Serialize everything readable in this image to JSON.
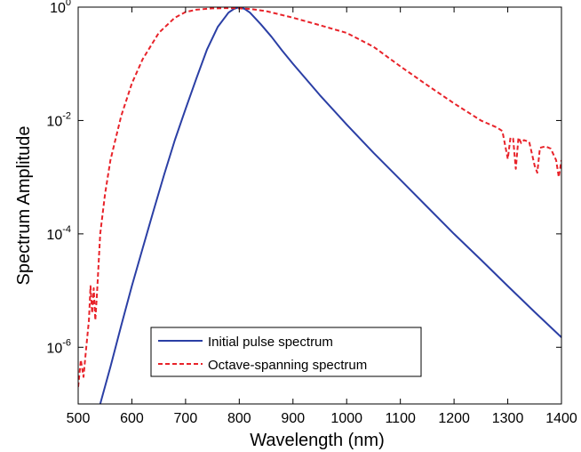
{
  "chart_data": {
    "type": "line",
    "title": "",
    "xlabel": "Wavelength (nm)",
    "ylabel": "Spectrum Amplitude",
    "xlim": [
      500,
      1400
    ],
    "ylim": [
      1e-07,
      1
    ],
    "y_scale": "log",
    "grid": false,
    "legend_position": "lower-left",
    "x_ticks": [
      {
        "value": 500,
        "label": "500"
      },
      {
        "value": 600,
        "label": "600"
      },
      {
        "value": 700,
        "label": "700"
      },
      {
        "value": 800,
        "label": "800"
      },
      {
        "value": 900,
        "label": "900"
      },
      {
        "value": 1000,
        "label": "1000"
      },
      {
        "value": 1100,
        "label": "1100"
      },
      {
        "value": 1200,
        "label": "1200"
      },
      {
        "value": 1300,
        "label": "1300"
      },
      {
        "value": 1400,
        "label": "1400"
      }
    ],
    "y_ticks": [
      {
        "value": 1e-06,
        "base": "10",
        "exp": "-6"
      },
      {
        "value": 0.0001,
        "base": "10",
        "exp": "-4"
      },
      {
        "value": 0.01,
        "base": "10",
        "exp": "-2"
      },
      {
        "value": 1,
        "base": "10",
        "exp": "0"
      }
    ],
    "series": [
      {
        "name": "Initial pulse spectrum",
        "color": "#2b3fa5",
        "style": "solid",
        "x": [
          541,
          560,
          580,
          600,
          620,
          640,
          660,
          680,
          700,
          720,
          740,
          760,
          780,
          790,
          800,
          810,
          820,
          840,
          860,
          880,
          900,
          950,
          1000,
          1050,
          1100,
          1150,
          1200,
          1250,
          1300,
          1350,
          1400
        ],
        "y": [
          1e-07,
          4.5e-07,
          2.4e-06,
          1.2e-05,
          5.5e-05,
          0.00025,
          0.0011,
          0.0045,
          0.016,
          0.055,
          0.18,
          0.45,
          0.8,
          0.93,
          1.0,
          0.93,
          0.8,
          0.5,
          0.3,
          0.17,
          0.1,
          0.028,
          0.0085,
          0.0027,
          0.0009,
          0.0003,
          0.0001,
          3.5e-05,
          1.2e-05,
          4.2e-06,
          1.5e-06
        ]
      },
      {
        "name": "Octave-spanning spectrum",
        "color": "#e8232a",
        "style": "dashed",
        "x": [
          500,
          505,
          510,
          515,
          520,
          523,
          526,
          529,
          532,
          535,
          538,
          541,
          550,
          560,
          580,
          600,
          620,
          650,
          680,
          700,
          720,
          750,
          780,
          800,
          820,
          850,
          900,
          950,
          1000,
          1050,
          1100,
          1150,
          1200,
          1250,
          1280,
          1290,
          1300,
          1305,
          1310,
          1315,
          1320,
          1325,
          1330,
          1340,
          1350,
          1355,
          1360,
          1370,
          1380,
          1390,
          1395,
          1400
        ],
        "y": [
          2e-07,
          6e-07,
          3e-07,
          1e-06,
          3e-06,
          1.2e-05,
          4e-06,
          1.1e-05,
          3e-06,
          9e-06,
          3e-05,
          0.0001,
          0.0005,
          0.002,
          0.012,
          0.045,
          0.12,
          0.35,
          0.65,
          0.82,
          0.9,
          0.95,
          0.96,
          0.95,
          0.93,
          0.85,
          0.65,
          0.48,
          0.35,
          0.2,
          0.09,
          0.042,
          0.02,
          0.01,
          0.0075,
          0.0065,
          0.0021,
          0.005,
          0.0048,
          0.0014,
          0.005,
          0.004,
          0.0045,
          0.0042,
          0.0016,
          0.0012,
          0.0033,
          0.0035,
          0.0032,
          0.002,
          0.001,
          0.002
        ]
      }
    ]
  }
}
